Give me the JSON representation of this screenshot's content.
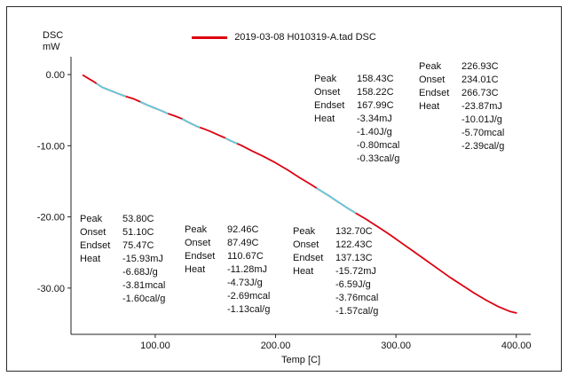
{
  "chart_data": {
    "type": "line",
    "title": "",
    "y_axis_title": [
      "DSC",
      "mW"
    ],
    "x_axis_title": "Temp [C]",
    "xlim": [
      30,
      412
    ],
    "ylim": [
      -36.5,
      2.5
    ],
    "x_ticks": [
      {
        "v": 100,
        "label": "100.00"
      },
      {
        "v": 200,
        "label": "200.00"
      },
      {
        "v": 300,
        "label": "300.00"
      },
      {
        "v": 400,
        "label": "400.00"
      }
    ],
    "y_ticks": [
      {
        "v": 0,
        "label": "0.00"
      },
      {
        "v": -10,
        "label": "-10.00"
      },
      {
        "v": -20,
        "label": "-20.00"
      },
      {
        "v": -30,
        "label": "-30.00"
      }
    ],
    "series": [
      {
        "name": "2019-03-08 H010319-A.tad DSC",
        "color": "#dd0010",
        "x": [
          40,
          48,
          52,
          56,
          62,
          68,
          75,
          82,
          88,
          93,
          98,
          104,
          110,
          116,
          122,
          127,
          131,
          135,
          140,
          146,
          152,
          158,
          162,
          166,
          172,
          180,
          190,
          200,
          210,
          220,
          228,
          236,
          244,
          252,
          260,
          267,
          275,
          285,
          295,
          305,
          315,
          325,
          335,
          345,
          355,
          365,
          375,
          385,
          395,
          400
        ],
        "y": [
          -0.1,
          -0.9,
          -1.35,
          -1.8,
          -2.2,
          -2.6,
          -3.05,
          -3.4,
          -3.85,
          -4.25,
          -4.6,
          -5.0,
          -5.45,
          -5.8,
          -6.2,
          -6.65,
          -7.0,
          -7.3,
          -7.6,
          -8.0,
          -8.45,
          -8.9,
          -9.25,
          -9.55,
          -10.0,
          -10.7,
          -11.5,
          -12.4,
          -13.4,
          -14.5,
          -15.3,
          -16.15,
          -17.0,
          -17.9,
          -18.8,
          -19.5,
          -20.3,
          -21.4,
          -22.5,
          -23.7,
          -24.9,
          -26.1,
          -27.3,
          -28.5,
          -29.6,
          -30.7,
          -31.7,
          -32.6,
          -33.3,
          -33.5
        ]
      }
    ],
    "highlights": {
      "color": "#4fd8e8",
      "ranges": [
        [
          51.1,
          75.5
        ],
        [
          87.5,
          110.7
        ],
        [
          122.4,
          137.1
        ],
        [
          158.2,
          168.0
        ],
        [
          234.0,
          266.7
        ]
      ]
    },
    "grid": false,
    "legend_position": "top-center"
  },
  "annotations": [
    {
      "rows": [
        {
          "label": "Peak",
          "value": "53.80C"
        },
        {
          "label": "Onset",
          "value": "51.10C"
        },
        {
          "label": "Endset",
          "value": "75.47C"
        },
        {
          "label": "Heat",
          "value": "-15.93mJ"
        },
        {
          "label": "",
          "value": "-6.68J/g"
        },
        {
          "label": "",
          "value": "-3.81mcal"
        },
        {
          "label": "",
          "value": "-1.60cal/g"
        }
      ]
    },
    {
      "rows": [
        {
          "label": "Peak",
          "value": "92.46C"
        },
        {
          "label": "Onset",
          "value": "87.49C"
        },
        {
          "label": "Endset",
          "value": "110.67C"
        },
        {
          "label": "Heat",
          "value": "-11.28mJ"
        },
        {
          "label": "",
          "value": "-4.73J/g"
        },
        {
          "label": "",
          "value": "-2.69mcal"
        },
        {
          "label": "",
          "value": "-1.13cal/g"
        }
      ]
    },
    {
      "rows": [
        {
          "label": "Peak",
          "value": "132.70C"
        },
        {
          "label": "Onset",
          "value": "122.43C"
        },
        {
          "label": "Endset",
          "value": "137.13C"
        },
        {
          "label": "Heat",
          "value": "-15.72mJ"
        },
        {
          "label": "",
          "value": "-6.59J/g"
        },
        {
          "label": "",
          "value": "-3.76mcal"
        },
        {
          "label": "",
          "value": "-1.57cal/g"
        }
      ]
    },
    {
      "rows": [
        {
          "label": "Peak",
          "value": "158.43C"
        },
        {
          "label": "Onset",
          "value": "158.22C"
        },
        {
          "label": "Endset",
          "value": "167.99C"
        },
        {
          "label": "Heat",
          "value": "-3.34mJ"
        },
        {
          "label": "",
          "value": "-1.40J/g"
        },
        {
          "label": "",
          "value": "-0.80mcal"
        },
        {
          "label": "",
          "value": "-0.33cal/g"
        }
      ]
    },
    {
      "rows": [
        {
          "label": "Peak",
          "value": "226.93C"
        },
        {
          "label": "Onset",
          "value": "234.01C"
        },
        {
          "label": "Endset",
          "value": "266.73C"
        },
        {
          "label": "Heat",
          "value": "-23.87mJ"
        },
        {
          "label": "",
          "value": "-10.01J/g"
        },
        {
          "label": "",
          "value": "-5.70mcal"
        },
        {
          "label": "",
          "value": "-2.39cal/g"
        }
      ]
    }
  ]
}
